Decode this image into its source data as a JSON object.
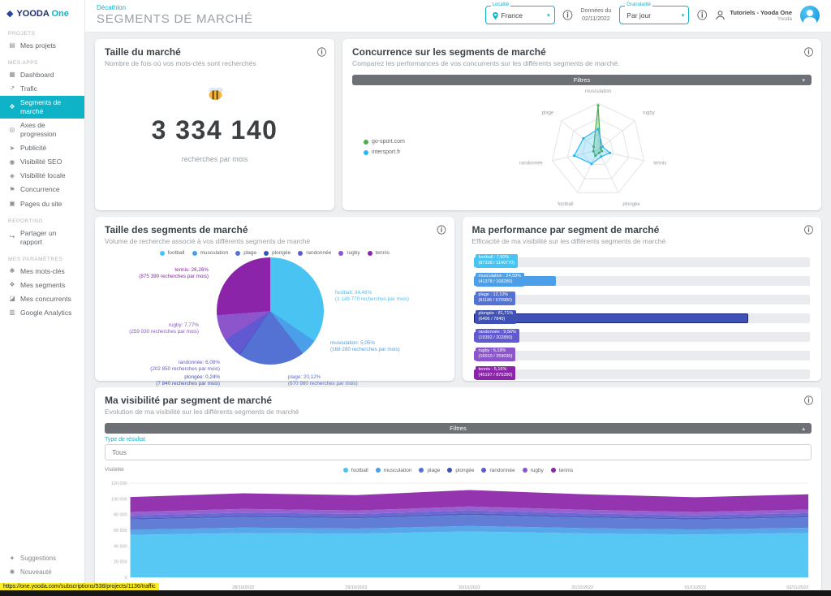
{
  "brand": {
    "primary": "YOODA",
    "secondary": "One"
  },
  "header": {
    "breadcrumb": "Décathlon",
    "title": "SEGMENTS DE MARCHÉ",
    "locality_label": "Localité",
    "locality_value": "France",
    "data_date_label": "Données du",
    "data_date_value": "02/11/2022",
    "granularity_label": "Granularité",
    "granularity_value": "Par jour",
    "user_name": "Tutoriels - Yooda One",
    "user_sub": "Yooda"
  },
  "sidebar": {
    "sections": [
      {
        "label": "PROJETS",
        "items": [
          {
            "id": "mes-projets",
            "label": "Mes projets"
          }
        ]
      },
      {
        "label": "MES APPS",
        "items": [
          {
            "id": "dashboard",
            "label": "Dashboard"
          },
          {
            "id": "trafic",
            "label": "Trafic"
          },
          {
            "id": "segments-de-marche",
            "label": "Segments de marché",
            "active": true
          },
          {
            "id": "axes-de-progression",
            "label": "Axes de progression"
          },
          {
            "id": "publicite",
            "label": "Publicité"
          },
          {
            "id": "visibilite-seo",
            "label": "Visibilité SEO"
          },
          {
            "id": "visibilite-locale",
            "label": "Visibilité locale"
          },
          {
            "id": "concurrence",
            "label": "Concurrence"
          },
          {
            "id": "pages-du-site",
            "label": "Pages du site"
          }
        ]
      },
      {
        "label": "REPORTING",
        "items": [
          {
            "id": "partager-un-rapport",
            "label": "Partager un rapport"
          }
        ]
      },
      {
        "label": "MES PARAMÈTRES",
        "items": [
          {
            "id": "mes-mots-cles",
            "label": "Mes mots-clés"
          },
          {
            "id": "mes-segments",
            "label": "Mes segments"
          },
          {
            "id": "mes-concurrents",
            "label": "Mes concurrents"
          },
          {
            "id": "google-analytics",
            "label": "Google Analytics"
          }
        ]
      }
    ],
    "footer": [
      {
        "id": "suggestions",
        "label": "Suggestions"
      },
      {
        "id": "nouveaute",
        "label": "Nouveauté"
      }
    ]
  },
  "cards": {
    "market_size": {
      "title": "Taille du marché",
      "subtitle": "Nombre de fois où vos mots-clés sont recherchés",
      "value": "3 334 140",
      "unit": "recherches par mois"
    },
    "competition": {
      "title": "Concurrence sur les segments de marché",
      "subtitle": "Comparez les performances de vos concurrents sur les différents segments de marché.",
      "filters_label": "Filtres"
    },
    "segment_size": {
      "title": "Taille des segments de marché",
      "subtitle": "Volume de recherche associé à vos différents segments de marché"
    },
    "performance": {
      "title": "Ma performance par segment de marché",
      "subtitle": "Efficacité de ma visibilité sur les différents segments de marché"
    },
    "visibility": {
      "title": "Ma visibilité par segment de marché",
      "subtitle": "Evolution de ma visibilité sur les différents segments de marché",
      "filters_label": "Filtres",
      "filter_type_label": "Type de résultat",
      "filter_type_value": "Tous",
      "ylabel": "Visibilité"
    }
  },
  "segments": [
    {
      "label": "football",
      "color": "#49c3f2"
    },
    {
      "label": "musculation",
      "color": "#4a9fe8"
    },
    {
      "label": "plage",
      "color": "#5472d3"
    },
    {
      "label": "plongée",
      "color": "#3f51b5"
    },
    {
      "label": "randonnée",
      "color": "#6159d1"
    },
    {
      "label": "rugby",
      "color": "#8d55cc"
    },
    {
      "label": "tennis",
      "color": "#8b24a8"
    }
  ],
  "chart_data": [
    {
      "id": "radar",
      "type": "radar",
      "title": "Concurrence sur les segments de marché",
      "axes": [
        "musculation",
        "rugby",
        "tennis",
        "plongée",
        "football",
        "randonnée",
        "plage"
      ],
      "scale": [
        0,
        1
      ],
      "series": [
        {
          "name": "go-sport.com",
          "color": "#4caf50",
          "values": [
            0.95,
            0.07,
            0.08,
            0.06,
            0.13,
            0.1,
            0.12
          ]
        },
        {
          "name": "intersport.fr",
          "color": "#29b6f6",
          "values": [
            0.45,
            0.12,
            0.26,
            0.15,
            0.32,
            0.52,
            0.4
          ]
        }
      ]
    },
    {
      "id": "pie",
      "type": "pie",
      "title": "Taille des segments de marché",
      "slices": [
        {
          "name": "football",
          "value": 1149770,
          "pct_label": "football: 34,48%",
          "detail": "(1 149 770 recherches par mois)"
        },
        {
          "name": "musculation",
          "value": 168280,
          "pct_label": "musculation: 5,05%",
          "detail": "(168 280 recherches par mois)"
        },
        {
          "name": "plage",
          "value": 670980,
          "pct_label": "plage: 20,12%",
          "detail": "(670 980 recherches par mois)"
        },
        {
          "name": "plongée",
          "value": 7840,
          "pct_label": "plongée: 0,24%",
          "detail": "(7 840 recherches par mois)"
        },
        {
          "name": "randonnée",
          "value": 202850,
          "pct_label": "randonnée: 6,08%",
          "detail": "(202 850 recherches par mois)"
        },
        {
          "name": "rugby",
          "value": 259030,
          "pct_label": "rugby: 7,77%",
          "detail": "(259 030 recherches par mois)"
        },
        {
          "name": "tennis",
          "value": 875390,
          "pct_label": "tennis: 26,26%",
          "detail": "(875 390 recherches par mois)"
        }
      ]
    },
    {
      "id": "performance",
      "type": "bar",
      "title": "Ma performance par segment de marché",
      "xlim": [
        0,
        100
      ],
      "bars": [
        {
          "name": "football",
          "pct": 7.6,
          "label": "football : 7,60%",
          "detail": "(87338 / 1149770)"
        },
        {
          "name": "musculation",
          "pct": 24.59,
          "label": "musculation : 24,59%",
          "detail": "(41378 / 168280)"
        },
        {
          "name": "plage",
          "pct": 12.1,
          "label": "plage : 12,10%",
          "detail": "(81186 / 670980)"
        },
        {
          "name": "plongée",
          "pct": 81.71,
          "label": "plongée : 81,71%",
          "detail": "(6406 / 7840)",
          "highlight": true
        },
        {
          "name": "randonnée",
          "pct": 9.56,
          "label": "randonnée : 9,56%",
          "detail": "(19392 / 202850)"
        },
        {
          "name": "rugby",
          "pct": 6.18,
          "label": "rugby : 6,18%",
          "detail": "(16010 / 259030)"
        },
        {
          "name": "tennis",
          "pct": 5.16,
          "label": "tennis : 5,16%",
          "detail": "(45197 / 875390)"
        }
      ]
    },
    {
      "id": "visibility",
      "type": "area",
      "title": "Ma visibilité par segment de marché",
      "ylabel": "Visibilité",
      "ylim": [
        0,
        120000
      ],
      "x": [
        "27/10/2022",
        "28/10/2022",
        "29/10/2022",
        "30/10/2022",
        "31/10/2022",
        "01/11/2022",
        "02/11/2022"
      ],
      "series": [
        {
          "name": "football",
          "values": [
            54000,
            56500,
            55500,
            58500,
            56000,
            54500,
            56500
          ]
        },
        {
          "name": "musculation",
          "values": [
            6500,
            6800,
            6600,
            7000,
            6700,
            6400,
            6600
          ]
        },
        {
          "name": "plage",
          "values": [
            13000,
            13600,
            13200,
            14200,
            13400,
            12800,
            13300
          ]
        },
        {
          "name": "plongée",
          "values": [
            1800,
            1850,
            1820,
            1900,
            1850,
            1800,
            1850
          ]
        },
        {
          "name": "randonnée",
          "values": [
            3500,
            3650,
            3550,
            3750,
            3600,
            3400,
            3550
          ]
        },
        {
          "name": "rugby",
          "values": [
            4500,
            4700,
            4600,
            4850,
            4650,
            4400,
            4550
          ]
        },
        {
          "name": "tennis",
          "values": [
            19000,
            20000,
            19400,
            21000,
            19700,
            18700,
            19500
          ]
        }
      ]
    }
  ],
  "status_url": "https://one.yooda.com/subscriptions/538/projects/1136/traffic"
}
